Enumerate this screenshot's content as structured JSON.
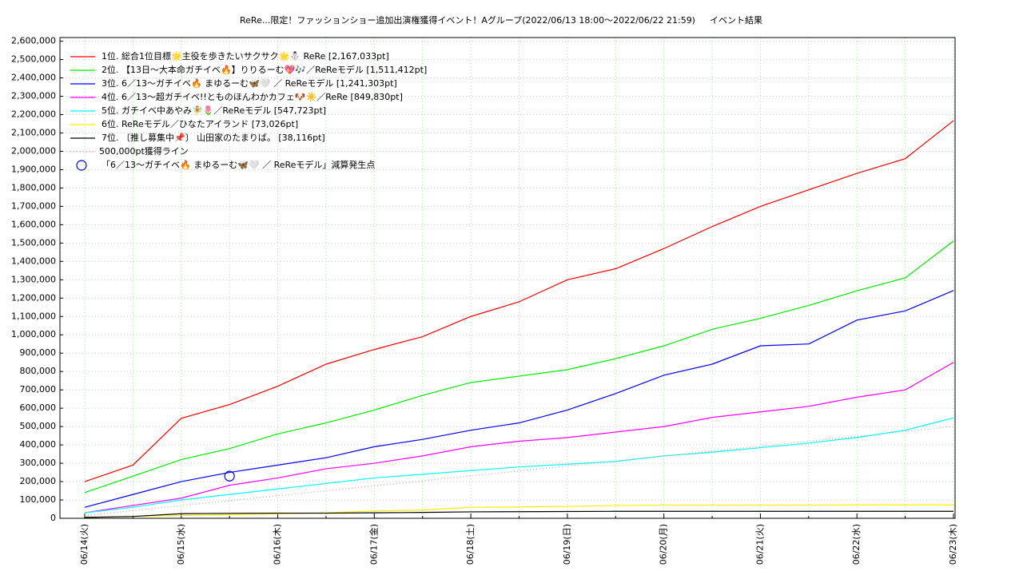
{
  "chart_data": {
    "type": "line",
    "title": "ReRe...限定！ファッションショー追加出演権獲得イベント！Aグループ(2022/06/13 18:00〜2022/06/22 21:59)",
    "subtitle": "イベント結果",
    "categories": [
      "06/14(火)",
      null,
      "06/15(水)",
      null,
      "06/16(木)",
      null,
      "06/17(金)",
      null,
      "06/18(土)",
      null,
      "06/19(日)",
      null,
      "06/20(月)",
      null,
      "06/21(火)",
      null,
      "06/22(水)",
      null,
      "06/23(木)"
    ],
    "ylim": [
      0,
      2620000
    ],
    "yticks": [
      {
        "value": 0,
        "label": "0"
      },
      {
        "value": 100000,
        "label": "100,000"
      },
      {
        "value": 200000,
        "label": "200,000"
      },
      {
        "value": 300000,
        "label": "300,000"
      },
      {
        "value": 400000,
        "label": "400,000"
      },
      {
        "value": 500000,
        "label": "500,000"
      },
      {
        "value": 600000,
        "label": "600,000"
      },
      {
        "value": 700000,
        "label": "700,000"
      },
      {
        "value": 800000,
        "label": "800,000"
      },
      {
        "value": 900000,
        "label": "900,000"
      },
      {
        "value": 1000000,
        "label": "1,000,000"
      },
      {
        "value": 1100000,
        "label": "1,100,000"
      },
      {
        "value": 1200000,
        "label": "1,200,000"
      },
      {
        "value": 1300000,
        "label": "1,300,000"
      },
      {
        "value": 1400000,
        "label": "1,400,000"
      },
      {
        "value": 1500000,
        "label": "1,500,000"
      },
      {
        "value": 1600000,
        "label": "1,600,000"
      },
      {
        "value": 1700000,
        "label": "1,700,000"
      },
      {
        "value": 1800000,
        "label": "1,800,000"
      },
      {
        "value": 1900000,
        "label": "1,900,000"
      },
      {
        "value": 2000000,
        "label": "2,000,000"
      },
      {
        "value": 2100000,
        "label": "2,100,000"
      },
      {
        "value": 2200000,
        "label": "2,200,000"
      },
      {
        "value": 2300000,
        "label": "2,300,000"
      },
      {
        "value": 2400000,
        "label": "2,400,000"
      },
      {
        "value": 2500000,
        "label": "2,500,000"
      },
      {
        "value": 2600000,
        "label": "2,600,000"
      }
    ],
    "grid": true,
    "series": [
      {
        "name": "1位. 総合1位目標🌟主役を歩きたいサクサク🌟⛄ ReRe [2,167,033pt]",
        "color": "#ff0000",
        "style": "line",
        "values": [
          200000,
          290000,
          545000,
          620000,
          720000,
          840000,
          920000,
          990000,
          1100000,
          1180000,
          1300000,
          1360000,
          1470000,
          1590000,
          1700000,
          1790000,
          1880000,
          1960000,
          2167033
        ]
      },
      {
        "name": "2位. 【13日〜大本命ガチイベ🔥】りりるーむ💖🎶／ReReモデル [1,511,412pt]",
        "color": "#00ee00",
        "style": "line",
        "values": [
          140000,
          230000,
          320000,
          380000,
          460000,
          520000,
          590000,
          670000,
          740000,
          775000,
          810000,
          870000,
          940000,
          1030000,
          1090000,
          1160000,
          1240000,
          1310000,
          1511412
        ]
      },
      {
        "name": "3位. 6／13〜ガチイベ🔥 まゆるーむ🦋🤍 ／ ReReモデル [1,241,303pt]",
        "color": "#0000ff",
        "style": "line",
        "values": [
          60000,
          130000,
          200000,
          250000,
          290000,
          330000,
          390000,
          430000,
          480000,
          520000,
          590000,
          680000,
          780000,
          840000,
          940000,
          950000,
          1080000,
          1130000,
          1241303
        ]
      },
      {
        "name": "4位. 6／13〜超ガチイベ!!とものほんわかカフェ🐶☀️／ReRe [849,830pt]",
        "color": "#ff00ff",
        "style": "line",
        "values": [
          30000,
          70000,
          110000,
          180000,
          220000,
          270000,
          300000,
          340000,
          390000,
          420000,
          440000,
          470000,
          500000,
          550000,
          580000,
          610000,
          660000,
          700000,
          849830
        ]
      },
      {
        "name": "5位. ガチイベ中あやみ🧚🌷／ReReモデル [547,723pt]",
        "color": "#00ffff",
        "style": "line",
        "values": [
          30000,
          60000,
          100000,
          130000,
          160000,
          190000,
          220000,
          240000,
          260000,
          280000,
          295000,
          310000,
          340000,
          360000,
          385000,
          410000,
          440000,
          480000,
          547723
        ]
      },
      {
        "name": "6位. ReReモデル／ひなたアイランド [73,026pt]",
        "color": "#ffee00",
        "style": "line",
        "values": [
          5000,
          10000,
          15000,
          20000,
          25000,
          30000,
          40000,
          45000,
          60000,
          62000,
          65000,
          70000,
          72000,
          72000,
          72000,
          72000,
          73000,
          73000,
          73026
        ]
      },
      {
        "name": "7位. 〔推し募集中📌〕 山田家のたまりば。 [38,116pt]",
        "color": "#000000",
        "style": "line",
        "values": [
          5000,
          10000,
          25000,
          27000,
          28000,
          28000,
          30000,
          32000,
          35000,
          36000,
          37000,
          38000,
          38000,
          38000,
          38000,
          38000,
          38116,
          38116,
          38116
        ]
      },
      {
        "name": "500,000pt獲得ライン",
        "color": "#c0a0a0",
        "style": "dotted",
        "values": [
          15000,
          42000,
          69000,
          96000,
          123000,
          150000,
          177000,
          204000,
          231000,
          258000,
          285000,
          312000,
          339000,
          366000,
          393000,
          420000,
          446000,
          473000,
          500000
        ]
      },
      {
        "name": "「6／13〜ガチイベ🔥 まゆるーむ🦋🤍 ／ ReReモデル」減算発生点",
        "color": "#0000ff",
        "style": "marker",
        "values": [
          null,
          null,
          null,
          230000,
          null,
          null,
          null,
          null,
          null,
          null,
          null,
          null,
          null,
          null,
          null,
          null,
          null,
          null,
          null
        ]
      }
    ]
  }
}
